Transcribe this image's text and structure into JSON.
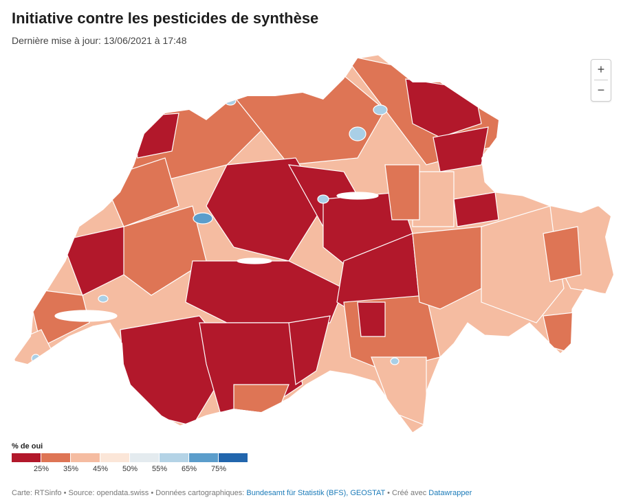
{
  "header": {
    "title": "Initiative contre les pesticides de synthèse",
    "subtitle": "Dernière mise à jour: 13/06/2021 à 17:48"
  },
  "zoom": {
    "in_label": "+",
    "out_label": "−"
  },
  "legend": {
    "title": "% de oui",
    "colors": [
      "#b2182b",
      "#de7555",
      "#f5bca1",
      "#fbe6d8",
      "#e4ebef",
      "#b4d3e6",
      "#5b9dcb",
      "#2266ad"
    ],
    "ticks": [
      "25%",
      "35%",
      "45%",
      "50%",
      "55%",
      "65%",
      "75%"
    ]
  },
  "footer": {
    "prefix": "Carte: RTSinfo • Source: opendata.swiss • Données cartographiques: ",
    "link1": "Bundesamt für Statistik (BFS), GEOSTAT",
    "middle": " • Créé avec ",
    "link2": "Datawrapper"
  },
  "map": {
    "region": "Suisse",
    "colors": {
      "strong_no": "#b2182b",
      "no": "#de7555",
      "light_no": "#f5bca1",
      "lake": "#a9cfe6",
      "blue_yes": "#5b9dcb"
    }
  }
}
